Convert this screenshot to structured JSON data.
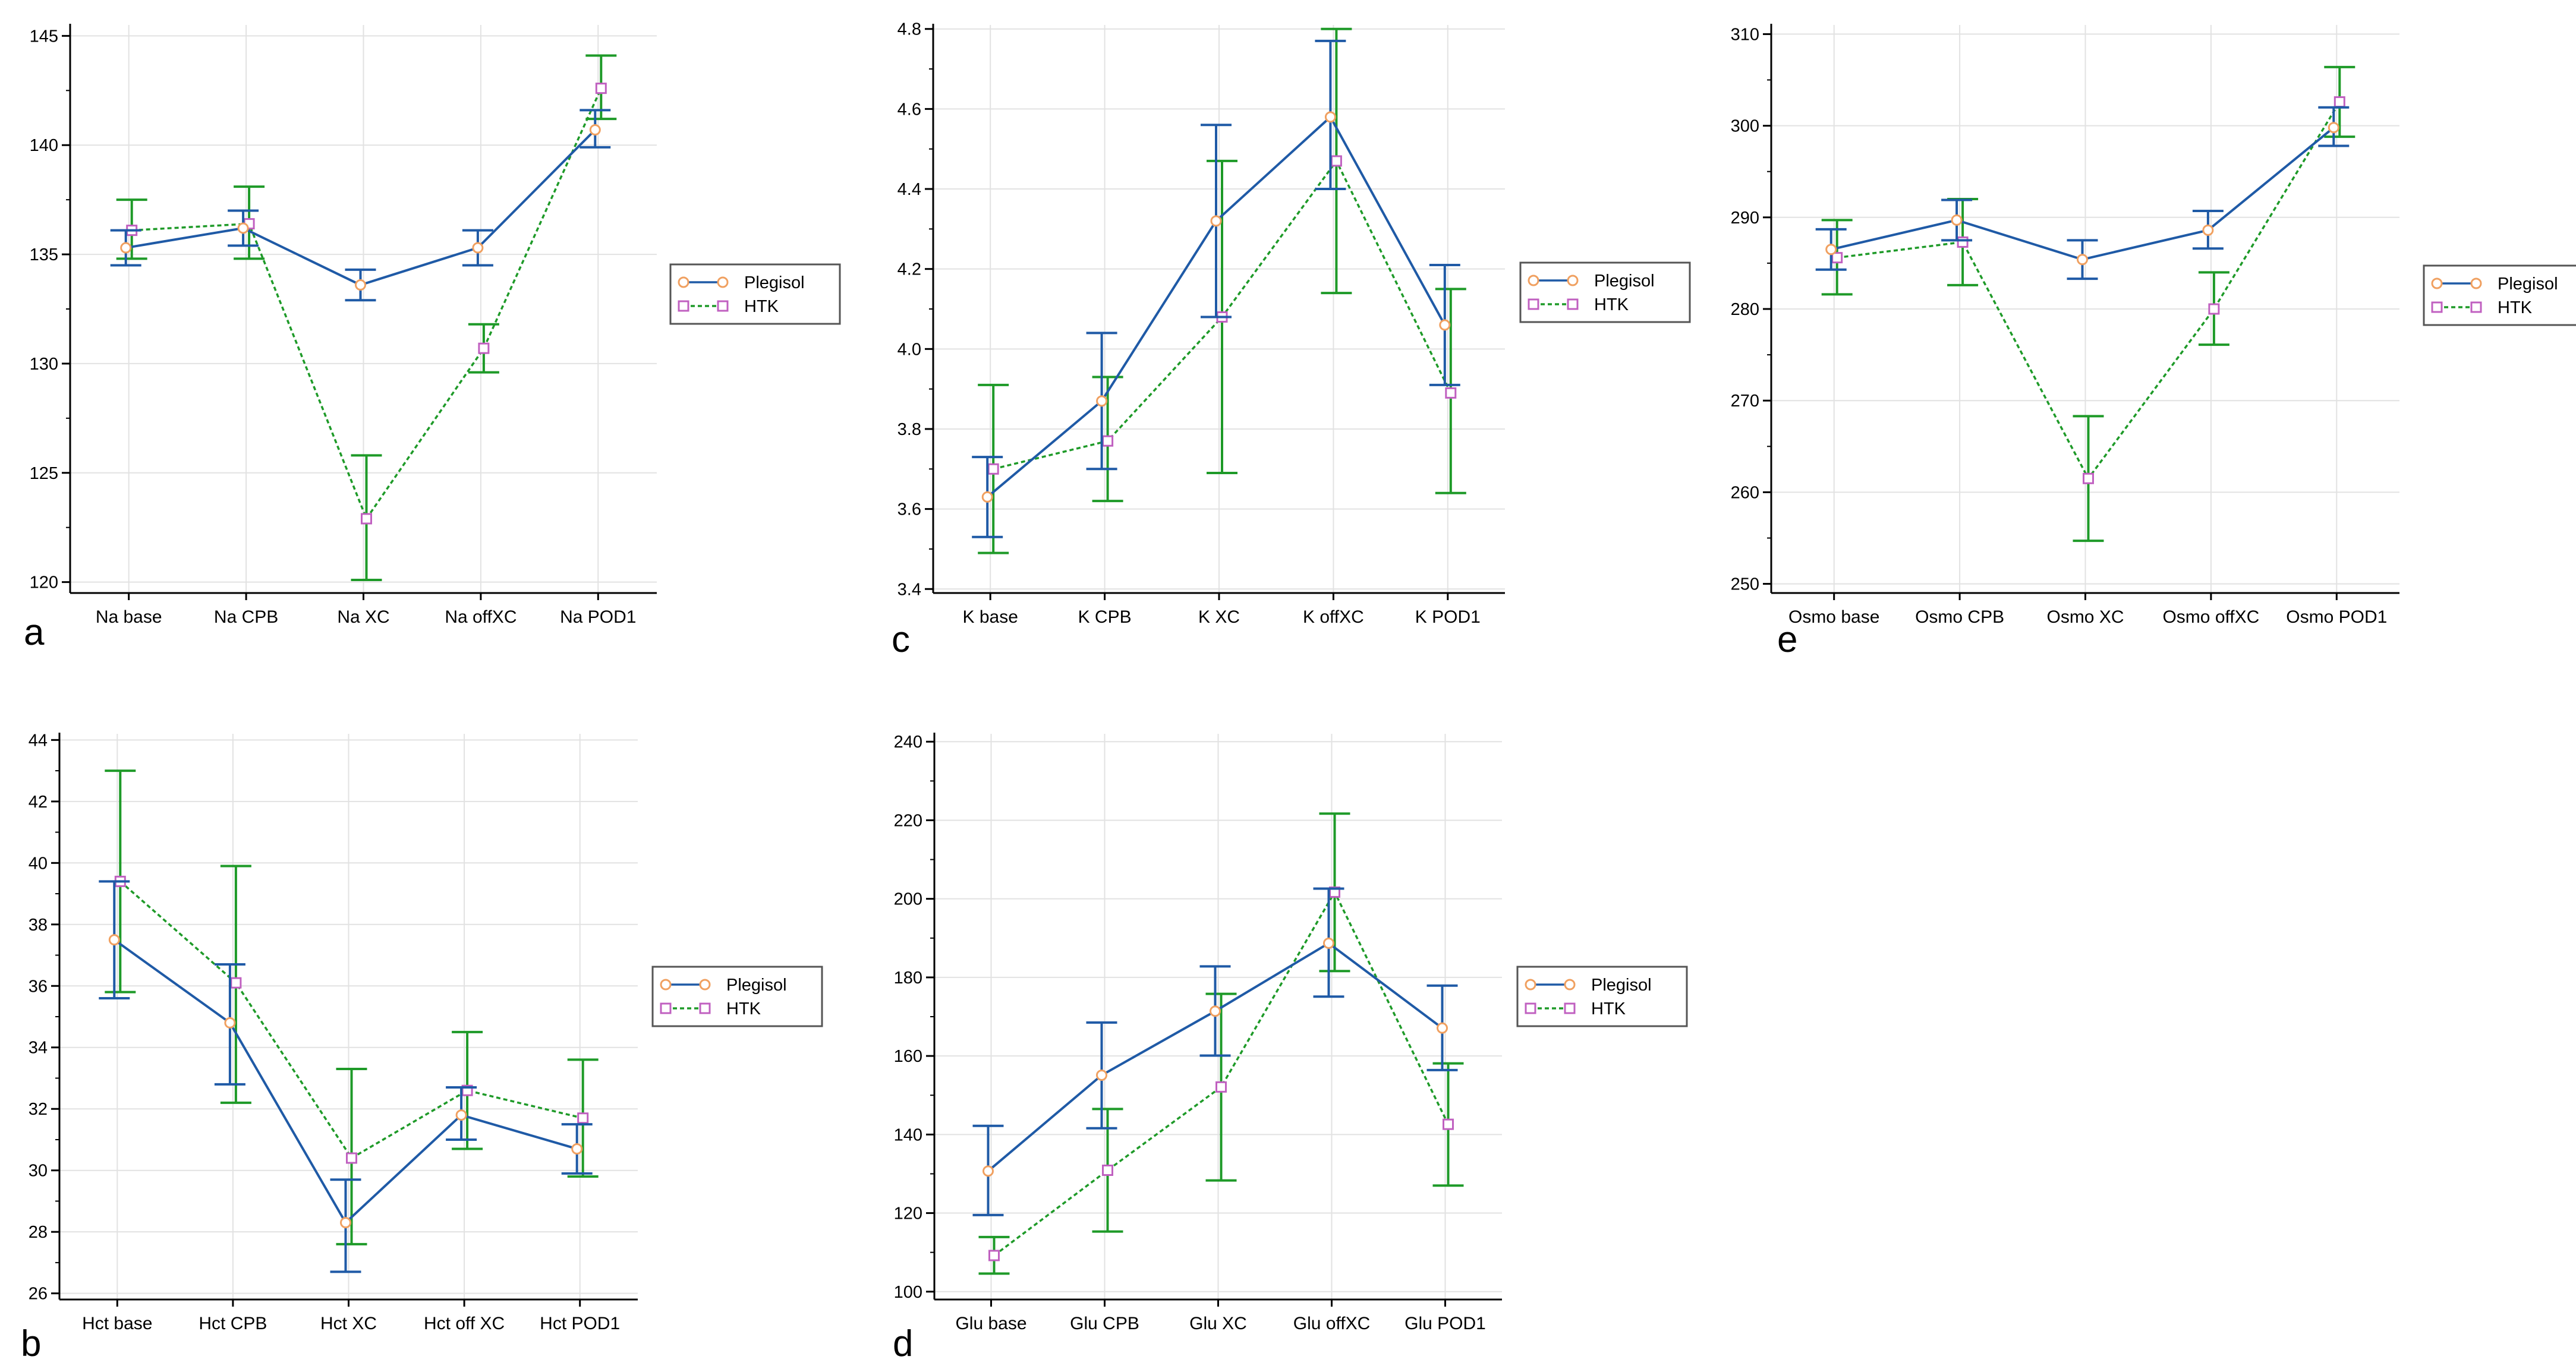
{
  "colors": {
    "plegisol_line": "#1f5aa6",
    "plegisol_marker": "#f0a060",
    "htk_line": "#1e9a28",
    "htk_marker": "#c060c0",
    "grid": "#e2e2e2",
    "axis": "#000000"
  },
  "chart_data": [
    {
      "type": "line",
      "panel_label": "a",
      "title": "",
      "xlabel": "",
      "ylabel": "",
      "categories": [
        "Na base",
        "Na CPB",
        "Na XC",
        "Na offXC",
        "Na POD1"
      ],
      "ylim": [
        119.5,
        145.5
      ],
      "yticks": [
        120,
        125,
        130,
        135,
        140,
        145
      ],
      "grid": true,
      "legend": "right",
      "series": [
        {
          "name": "Plegisol",
          "values": [
            135.3,
            136.2,
            133.6,
            135.3,
            140.7
          ],
          "err_low": [
            134.5,
            135.4,
            132.9,
            134.5,
            139.9
          ],
          "err_high": [
            136.1,
            137.0,
            134.3,
            136.1,
            141.6
          ]
        },
        {
          "name": "HTK",
          "values": [
            136.1,
            136.4,
            122.9,
            130.7,
            142.6
          ],
          "err_low": [
            134.8,
            134.8,
            120.1,
            129.6,
            141.2
          ],
          "err_high": [
            137.5,
            138.1,
            125.8,
            131.8,
            144.1
          ]
        }
      ]
    },
    {
      "type": "line",
      "panel_label": "c",
      "title": "",
      "xlabel": "",
      "ylabel": "",
      "categories": [
        "K base",
        "K CPB",
        "K XC",
        "K offXC",
        "K POD1"
      ],
      "ylim": [
        3.39,
        4.81
      ],
      "yticks": [
        3.4,
        3.6,
        3.8,
        4.0,
        4.2,
        4.4,
        4.6,
        4.8
      ],
      "tick_labels": [
        "3.4",
        "3.6",
        "3.8",
        "4.0",
        "4.2",
        "4.4",
        "4.6",
        "4.8"
      ],
      "grid": true,
      "legend": "right",
      "series": [
        {
          "name": "Plegisol",
          "values": [
            3.63,
            3.87,
            4.32,
            4.58,
            4.06
          ],
          "err_low": [
            3.53,
            3.7,
            4.08,
            4.4,
            3.91
          ],
          "err_high": [
            3.73,
            4.04,
            4.56,
            4.77,
            4.21
          ]
        },
        {
          "name": "HTK",
          "values": [
            3.7,
            3.77,
            4.08,
            4.47,
            3.89
          ],
          "err_low": [
            3.49,
            3.62,
            3.69,
            4.14,
            3.64
          ],
          "err_high": [
            3.91,
            3.93,
            4.47,
            4.8,
            4.15
          ]
        }
      ]
    },
    {
      "type": "line",
      "panel_label": "e",
      "title": "",
      "xlabel": "",
      "ylabel": "",
      "categories": [
        "Osmo base",
        "Osmo CPB",
        "Osmo XC",
        "Osmo offXC",
        "Osmo POD1"
      ],
      "ylim": [
        249,
        311
      ],
      "yticks": [
        250,
        260,
        270,
        280,
        290,
        300,
        310
      ],
      "grid": true,
      "legend": "right",
      "series": [
        {
          "name": "Plegisol",
          "values": [
            286.5,
            289.7,
            285.4,
            288.6,
            299.8
          ],
          "err_low": [
            284.3,
            287.5,
            283.3,
            286.6,
            297.8
          ],
          "err_high": [
            288.7,
            291.9,
            287.5,
            290.7,
            302.0
          ]
        },
        {
          "name": "HTK",
          "values": [
            285.6,
            287.3,
            261.5,
            280.0,
            302.6
          ],
          "err_low": [
            281.6,
            282.6,
            254.7,
            276.1,
            298.8
          ],
          "err_high": [
            289.7,
            292.0,
            268.3,
            284.0,
            306.4
          ]
        }
      ]
    },
    {
      "type": "line",
      "panel_label": "b",
      "title": "",
      "xlabel": "",
      "ylabel": "",
      "categories": [
        "Hct base",
        "Hct CPB",
        "Hct XC",
        "Hct off XC",
        "Hct POD1"
      ],
      "ylim": [
        25.8,
        44.2
      ],
      "yticks": [
        26,
        28,
        30,
        32,
        34,
        36,
        38,
        40,
        42,
        44
      ],
      "grid": true,
      "legend": "right",
      "series": [
        {
          "name": "Plegisol",
          "values": [
            37.5,
            34.8,
            28.3,
            31.8,
            30.7
          ],
          "err_low": [
            35.6,
            32.8,
            26.7,
            31.0,
            29.9
          ],
          "err_high": [
            39.4,
            36.7,
            29.7,
            32.7,
            31.5
          ]
        },
        {
          "name": "HTK",
          "values": [
            39.4,
            36.1,
            30.4,
            32.6,
            31.7
          ],
          "err_low": [
            35.8,
            32.2,
            27.6,
            30.7,
            29.8
          ],
          "err_high": [
            43.0,
            39.9,
            33.3,
            34.5,
            33.6
          ]
        }
      ]
    },
    {
      "type": "line",
      "panel_label": "d",
      "title": "",
      "xlabel": "",
      "ylabel": "",
      "categories": [
        "Glu base",
        "Glu CPB",
        "Glu XC",
        "Glu offXC",
        "Glu POD1"
      ],
      "ylim": [
        98,
        242
      ],
      "yticks": [
        100,
        120,
        140,
        160,
        180,
        200,
        220,
        240
      ],
      "grid": true,
      "legend": "right",
      "series": [
        {
          "name": "Plegisol",
          "values": [
            130.7,
            155.1,
            171.4,
            188.7,
            167.1
          ],
          "err_low": [
            119.5,
            141.6,
            160.1,
            175.1,
            156.4
          ],
          "err_high": [
            142.2,
            168.5,
            182.8,
            202.6,
            177.9
          ]
        },
        {
          "name": "HTK",
          "values": [
            109.2,
            130.9,
            152.1,
            201.7,
            142.6
          ],
          "err_low": [
            104.6,
            115.3,
            128.3,
            181.6,
            127.0
          ],
          "err_high": [
            113.9,
            146.5,
            175.8,
            221.7,
            158.1
          ]
        }
      ]
    }
  ]
}
